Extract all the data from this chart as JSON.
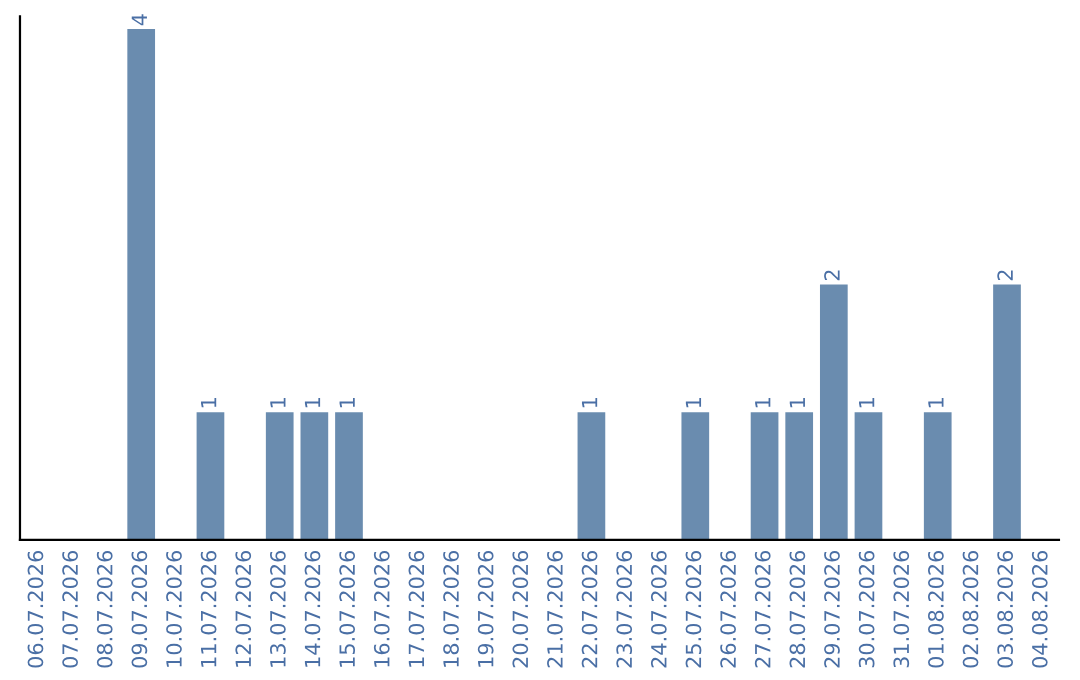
{
  "chart_data": {
    "type": "bar",
    "categories": [
      "06.07.2026",
      "07.07.2026",
      "08.07.2026",
      "09.07.2026",
      "10.07.2026",
      "11.07.2026",
      "12.07.2026",
      "13.07.2026",
      "14.07.2026",
      "15.07.2026",
      "16.07.2026",
      "17.07.2026",
      "18.07.2026",
      "19.07.2026",
      "20.07.2026",
      "21.07.2026",
      "22.07.2026",
      "23.07.2026",
      "24.07.2026",
      "25.07.2026",
      "26.07.2026",
      "27.07.2026",
      "28.07.2026",
      "29.07.2026",
      "30.07.2026",
      "31.07.2026",
      "01.08.2026",
      "02.08.2026",
      "03.08.2026",
      "04.08.2026"
    ],
    "values": [
      0,
      0,
      0,
      4,
      0,
      1,
      0,
      1,
      1,
      1,
      0,
      0,
      0,
      0,
      0,
      0,
      1,
      0,
      0,
      1,
      0,
      1,
      1,
      2,
      1,
      0,
      1,
      0,
      2,
      0
    ],
    "value_labels": [
      null,
      null,
      null,
      "4",
      null,
      "1",
      null,
      "1",
      "1",
      "1",
      null,
      null,
      null,
      null,
      null,
      null,
      "1",
      null,
      null,
      "1",
      null,
      "1",
      "1",
      "2",
      "1",
      null,
      "1",
      null,
      "2",
      null
    ],
    "color": "#6a8caf",
    "ylim": [
      0,
      4.1
    ],
    "tick_labels": "x",
    "grid": false,
    "legend": false
  }
}
